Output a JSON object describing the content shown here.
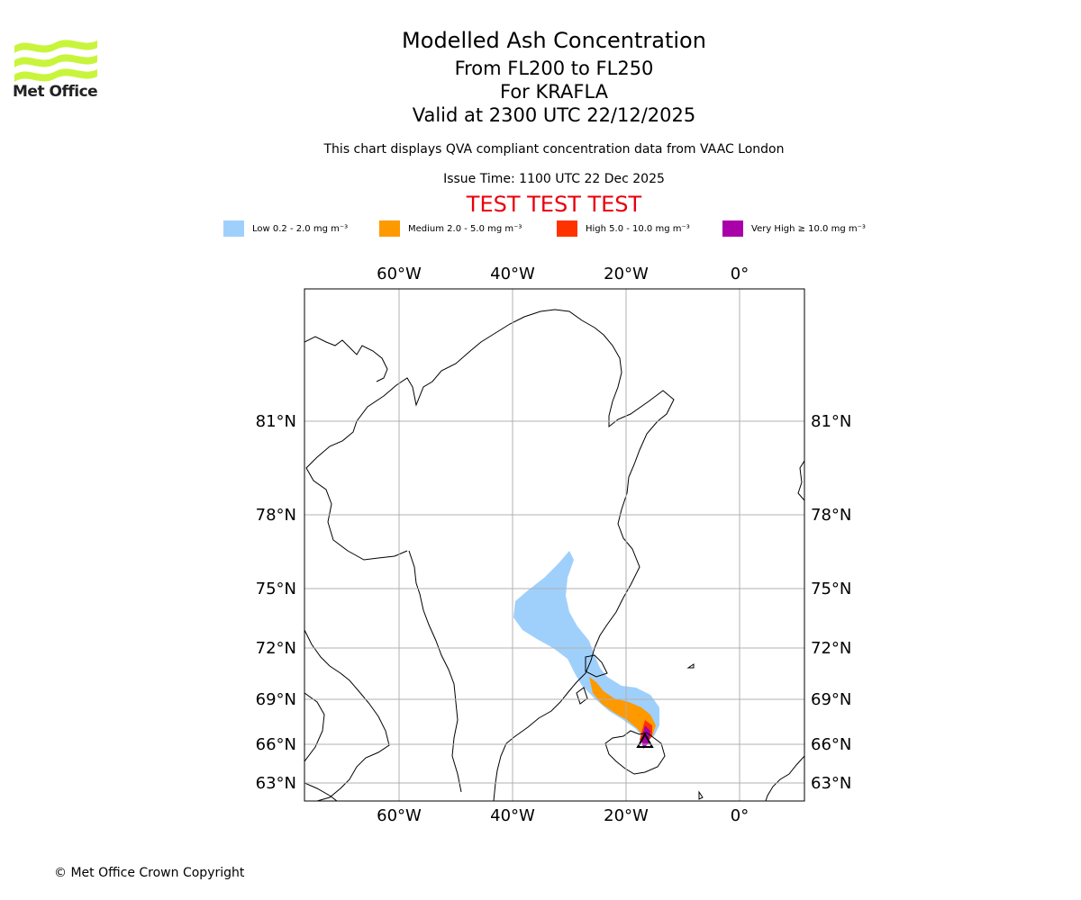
{
  "header": {
    "logo_text": "Met Office",
    "title": "Modelled Ash Concentration",
    "levels": "From FL200 to FL250",
    "volcano": "For KRAFLA",
    "valid_time": "Valid at 2300 UTC 22/12/2025",
    "description": "This chart displays QVA compliant concentration data from VAAC London",
    "issue_time": "Issue Time: 1100 UTC 22 Dec 2025",
    "test_banner": "TEST TEST TEST"
  },
  "legend": [
    {
      "label": "Low 0.2 - 2.0 mg m⁻³",
      "color": "#9fd0fb"
    },
    {
      "label": "Medium 2.0 - 5.0 mg m⁻³",
      "color": "#ff9900"
    },
    {
      "label": "High 5.0 - 10.0 mg m⁻³",
      "color": "#ff3300"
    },
    {
      "label": "Very High ≥ 10.0 mg m⁻³",
      "color": "#aa00aa"
    }
  ],
  "map": {
    "lon_labels": [
      "60°W",
      "40°W",
      "20°W",
      "0°"
    ],
    "lat_labels": [
      "81°N",
      "78°N",
      "75°N",
      "72°N",
      "69°N",
      "66°N",
      "63°N"
    ],
    "gridline_color": "#b0b0b0",
    "coastline_color": "#000000"
  },
  "footer": {
    "copyright": "© Met Office Crown Copyright"
  }
}
